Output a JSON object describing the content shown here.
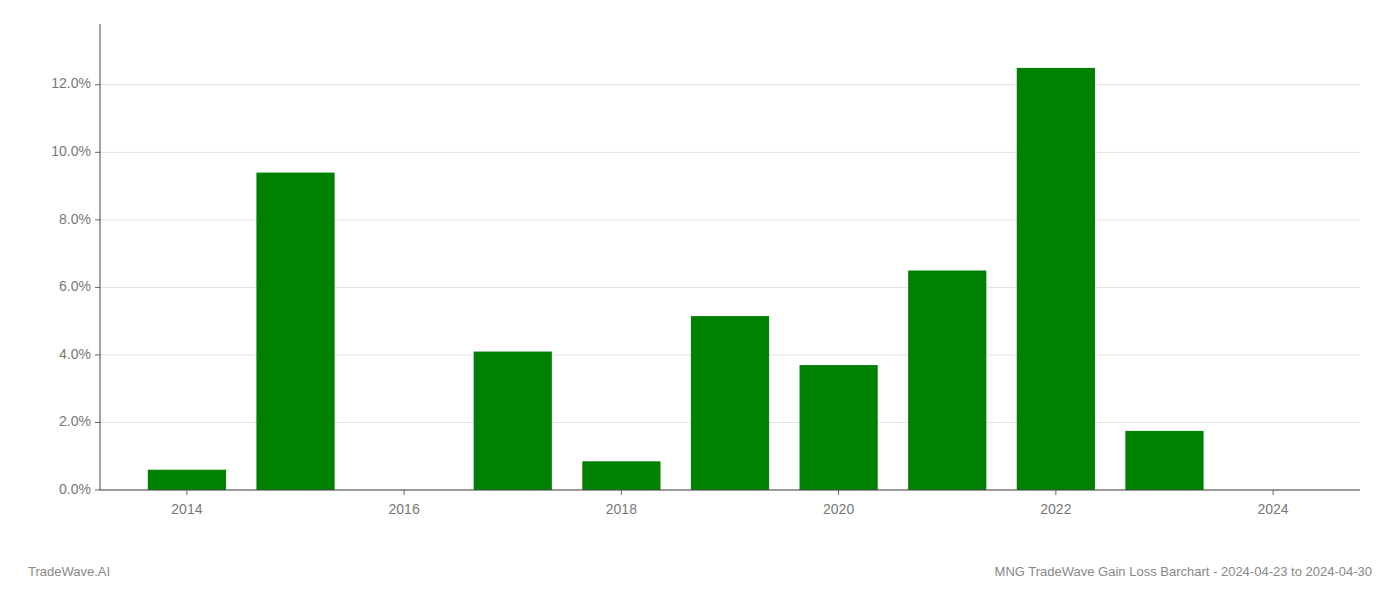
{
  "chart_data": {
    "type": "bar",
    "x": [
      2014,
      2015,
      2017,
      2018,
      2019,
      2020,
      2021,
      2022,
      2023
    ],
    "values": [
      0.006,
      0.094,
      0.041,
      0.0085,
      0.0515,
      0.037,
      0.065,
      0.125,
      0.0175
    ],
    "color": "#008000",
    "xlim": [
      2013.2,
      2024.8
    ],
    "xticks": [
      2014,
      2016,
      2018,
      2020,
      2022,
      2024
    ],
    "ylim": [
      0,
      0.138
    ],
    "yticks": [
      {
        "value": 0.0,
        "label": "0.0%"
      },
      {
        "value": 0.02,
        "label": "2.0%"
      },
      {
        "value": 0.04,
        "label": "4.0%"
      },
      {
        "value": 0.06,
        "label": "6.0%"
      },
      {
        "value": 0.08,
        "label": "8.0%"
      },
      {
        "value": 0.1,
        "label": "10.0%"
      },
      {
        "value": 0.12,
        "label": "12.0%"
      }
    ],
    "grid": true,
    "annotations": [
      "TradeWave.AI",
      "MNG TradeWave Gain Loss Barchart - 2024-04-23 to 2024-04-30"
    ]
  }
}
